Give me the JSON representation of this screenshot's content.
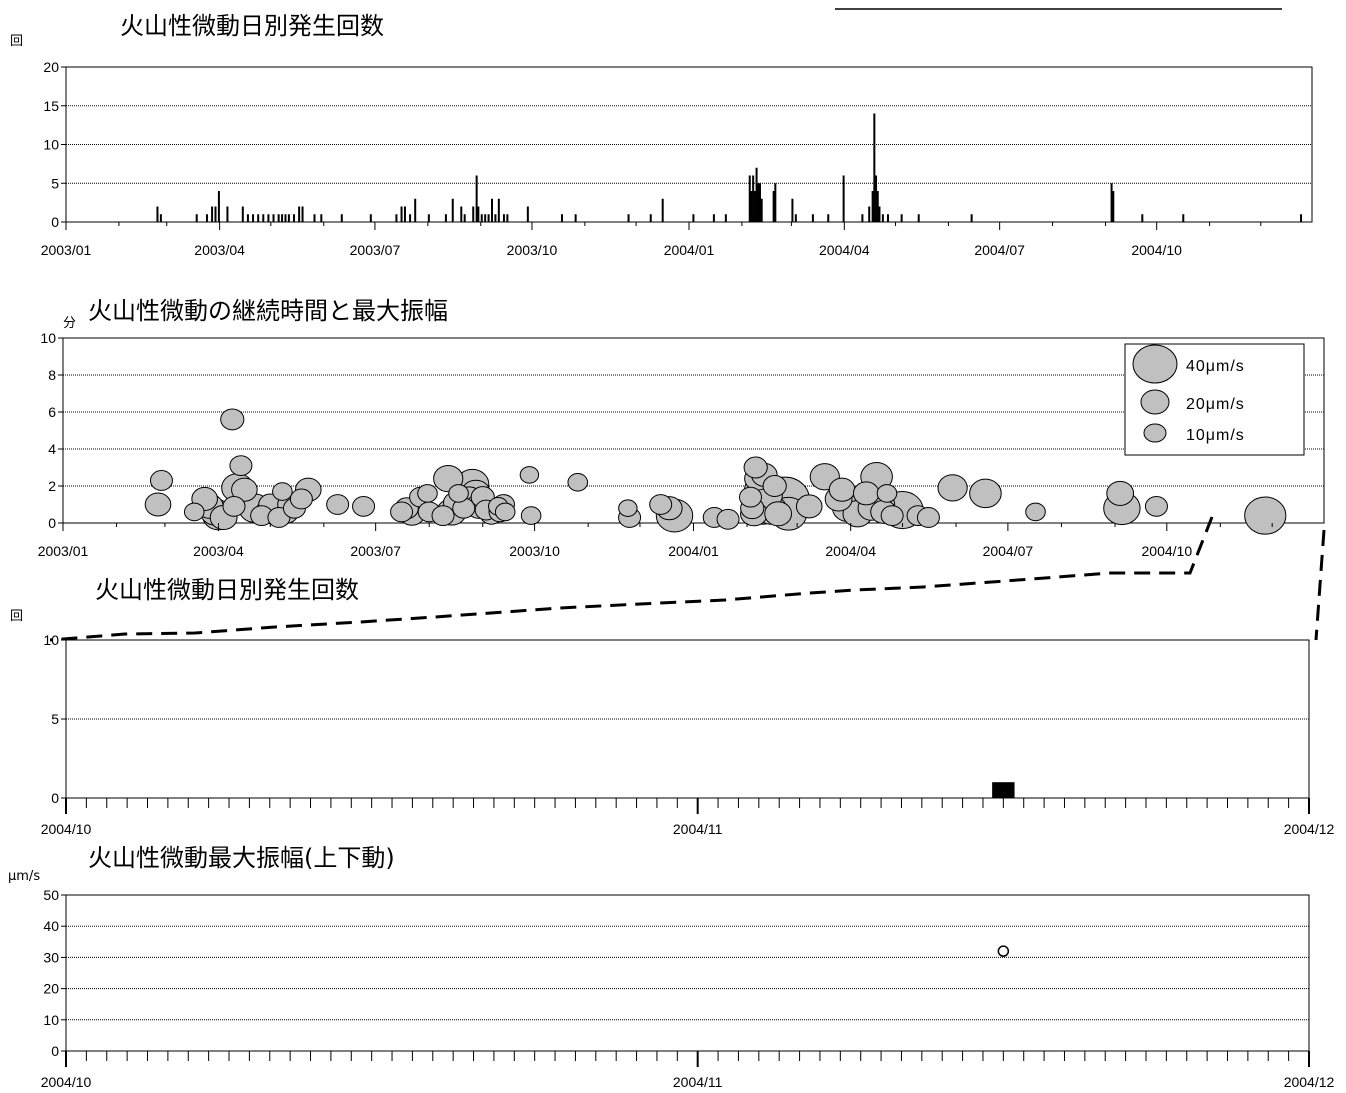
{
  "header_text": "",
  "chart_data": [
    {
      "type": "bar",
      "title": "火山性微動日別発生回数",
      "ylabel": "回",
      "ylim": [
        0,
        20
      ],
      "yticks": [
        0,
        5,
        10,
        15,
        20
      ],
      "xlim": [
        "2003-01-01",
        "2004-12-31"
      ],
      "xtick_labels": [
        "2003/01",
        "2003/04",
        "2003/07",
        "2003/10",
        "2004/01",
        "2004/04",
        "2004/07",
        "2004/10"
      ],
      "grid": true,
      "points": [
        [
          "2003-02-23",
          2
        ],
        [
          "2003-02-25",
          1
        ],
        [
          "2003-03-18",
          1
        ],
        [
          "2003-03-24",
          1
        ],
        [
          "2003-03-27",
          2
        ],
        [
          "2003-03-29",
          2
        ],
        [
          "2003-03-31",
          4
        ],
        [
          "2003-04-05",
          2
        ],
        [
          "2003-04-14",
          2
        ],
        [
          "2003-04-17",
          1
        ],
        [
          "2003-04-20",
          1
        ],
        [
          "2003-04-23",
          1
        ],
        [
          "2003-04-26",
          1
        ],
        [
          "2003-04-29",
          1
        ],
        [
          "2003-05-02",
          1
        ],
        [
          "2003-05-05",
          1
        ],
        [
          "2003-05-07",
          1
        ],
        [
          "2003-05-09",
          1
        ],
        [
          "2003-05-11",
          1
        ],
        [
          "2003-05-14",
          1
        ],
        [
          "2003-05-17",
          2
        ],
        [
          "2003-05-19",
          2
        ],
        [
          "2003-05-26",
          1
        ],
        [
          "2003-05-30",
          1
        ],
        [
          "2003-06-11",
          1
        ],
        [
          "2003-06-28",
          1
        ],
        [
          "2003-07-13",
          1
        ],
        [
          "2003-07-16",
          2
        ],
        [
          "2003-07-18",
          2
        ],
        [
          "2003-07-21",
          1
        ],
        [
          "2003-07-24",
          3
        ],
        [
          "2003-08-01",
          1
        ],
        [
          "2003-08-11",
          1
        ],
        [
          "2003-08-15",
          3
        ],
        [
          "2003-08-20",
          2
        ],
        [
          "2003-08-22",
          1
        ],
        [
          "2003-08-27",
          2
        ],
        [
          "2003-08-29",
          6
        ],
        [
          "2003-08-30",
          2
        ],
        [
          "2003-09-01",
          1
        ],
        [
          "2003-09-03",
          1
        ],
        [
          "2003-09-05",
          1
        ],
        [
          "2003-09-07",
          3
        ],
        [
          "2003-09-09",
          1
        ],
        [
          "2003-09-11",
          3
        ],
        [
          "2003-09-14",
          1
        ],
        [
          "2003-09-16",
          1
        ],
        [
          "2003-09-28",
          2
        ],
        [
          "2003-10-18",
          1
        ],
        [
          "2003-10-26",
          1
        ],
        [
          "2003-11-26",
          1
        ],
        [
          "2003-12-09",
          1
        ],
        [
          "2003-12-16",
          3
        ],
        [
          "2004-01-03",
          1
        ],
        [
          "2004-01-15",
          1
        ],
        [
          "2004-01-22",
          1
        ],
        [
          "2004-02-05",
          6
        ],
        [
          "2004-02-06",
          4
        ],
        [
          "2004-02-07",
          6
        ],
        [
          "2004-02-08",
          4
        ],
        [
          "2004-02-09",
          7
        ],
        [
          "2004-02-10",
          5
        ],
        [
          "2004-02-11",
          5
        ],
        [
          "2004-02-12",
          3
        ],
        [
          "2004-02-19",
          4
        ],
        [
          "2004-02-20",
          5
        ],
        [
          "2004-03-01",
          3
        ],
        [
          "2004-03-03",
          1
        ],
        [
          "2004-03-13",
          1
        ],
        [
          "2004-03-22",
          1
        ],
        [
          "2004-03-31",
          6
        ],
        [
          "2004-04-11",
          1
        ],
        [
          "2004-04-15",
          2
        ],
        [
          "2004-04-17",
          4
        ],
        [
          "2004-04-18",
          14
        ],
        [
          "2004-04-19",
          6
        ],
        [
          "2004-04-20",
          4
        ],
        [
          "2004-04-21",
          2
        ],
        [
          "2004-04-23",
          1
        ],
        [
          "2004-04-26",
          1
        ],
        [
          "2004-05-04",
          1
        ],
        [
          "2004-05-14",
          1
        ],
        [
          "2004-06-14",
          1
        ],
        [
          "2004-09-04",
          5
        ],
        [
          "2004-09-05",
          4
        ],
        [
          "2004-09-22",
          1
        ],
        [
          "2004-10-16",
          1
        ],
        [
          "2004-12-24",
          1
        ]
      ]
    },
    {
      "type": "scatter",
      "title": "火山性微動の継続時間と最大振幅",
      "ylabel": "分",
      "ylim": [
        0,
        10
      ],
      "yticks": [
        0,
        2,
        4,
        6,
        8,
        10
      ],
      "xlim": [
        "2003-01-01",
        "2004-12-31"
      ],
      "xtick_labels": [
        "2003/01",
        "2003/04",
        "2003/07",
        "2003/10",
        "2004/01",
        "2004/04",
        "2004/07",
        "2004/10"
      ],
      "size_legend": [
        {
          "label": "40μm/s",
          "amp": 40
        },
        {
          "label": "20μm/s",
          "amp": 20
        },
        {
          "label": "10μm/s",
          "amp": 10
        }
      ],
      "legend_position": "top-right",
      "grid": true,
      "note": "x = date, y = duration (minutes), amp = maximum amplitude (μm/s)",
      "points": [
        [
          "2003-02-27",
          2.3,
          10
        ],
        [
          "2003-02-25",
          1.0,
          13
        ],
        [
          "2003-03-18",
          0.6,
          8
        ],
        [
          "2003-03-24",
          1.3,
          13
        ],
        [
          "2003-03-27",
          0.9,
          14
        ],
        [
          "2003-03-30",
          0.6,
          16
        ],
        [
          "2003-04-01",
          0.4,
          18
        ],
        [
          "2003-04-04",
          0.3,
          14
        ],
        [
          "2003-04-09",
          5.6,
          11
        ],
        [
          "2003-04-10",
          0.9,
          10
        ],
        [
          "2003-04-12",
          1.9,
          18
        ],
        [
          "2003-04-14",
          3.1,
          10
        ],
        [
          "2003-04-16",
          1.8,
          13
        ],
        [
          "2003-04-22",
          0.8,
          18
        ],
        [
          "2003-04-26",
          0.4,
          10
        ],
        [
          "2003-04-30",
          0.6,
          13
        ],
        [
          "2003-05-01",
          1.0,
          11
        ],
        [
          "2003-05-03",
          0.8,
          16
        ],
        [
          "2003-05-06",
          0.3,
          10
        ],
        [
          "2003-05-08",
          1.7,
          8
        ],
        [
          "2003-05-10",
          0.6,
          13
        ],
        [
          "2003-05-12",
          1.0,
          11
        ],
        [
          "2003-05-15",
          0.8,
          10
        ],
        [
          "2003-05-19",
          1.3,
          10
        ],
        [
          "2003-05-23",
          1.8,
          13
        ],
        [
          "2003-06-09",
          1.0,
          10
        ],
        [
          "2003-06-24",
          0.9,
          10
        ],
        [
          "2003-07-16",
          0.6,
          10
        ],
        [
          "2003-07-19",
          0.8,
          11
        ],
        [
          "2003-07-22",
          0.5,
          13
        ],
        [
          "2003-07-27",
          1.4,
          10
        ],
        [
          "2003-07-31",
          1.6,
          8
        ],
        [
          "2003-08-01",
          0.6,
          10
        ],
        [
          "2003-08-09",
          0.4,
          10
        ],
        [
          "2003-08-12",
          2.4,
          16
        ],
        [
          "2003-08-14",
          0.6,
          16
        ],
        [
          "2003-08-16",
          1.1,
          11
        ],
        [
          "2003-08-18",
          1.6,
          8
        ],
        [
          "2003-08-21",
          0.8,
          10
        ],
        [
          "2003-08-24",
          1.3,
          14
        ],
        [
          "2003-08-26",
          2.1,
          19
        ],
        [
          "2003-08-28",
          1.6,
          16
        ],
        [
          "2003-08-30",
          0.9,
          14
        ],
        [
          "2003-09-01",
          1.4,
          11
        ],
        [
          "2003-09-03",
          0.7,
          10
        ],
        [
          "2003-09-06",
          0.5,
          11
        ],
        [
          "2003-09-10",
          0.9,
          8
        ],
        [
          "2003-09-11",
          0.6,
          10
        ],
        [
          "2003-09-13",
          1.0,
          10
        ],
        [
          "2003-09-14",
          0.6,
          8
        ],
        [
          "2003-09-28",
          2.6,
          7
        ],
        [
          "2003-09-29",
          0.4,
          8
        ],
        [
          "2003-10-26",
          2.2,
          8
        ],
        [
          "2003-11-24",
          0.8,
          7
        ],
        [
          "2003-11-25",
          0.3,
          10
        ],
        [
          "2003-12-13",
          1.0,
          10
        ],
        [
          "2003-12-18",
          0.8,
          13
        ],
        [
          "2003-12-21",
          0.4,
          22
        ],
        [
          "2004-01-13",
          0.3,
          10
        ],
        [
          "2004-01-21",
          0.2,
          10
        ],
        [
          "2004-02-03",
          1.4,
          10
        ],
        [
          "2004-02-04",
          0.8,
          11
        ],
        [
          "2004-02-05",
          0.5,
          14
        ],
        [
          "2004-02-06",
          3.0,
          11
        ],
        [
          "2004-02-07",
          2.4,
          13
        ],
        [
          "2004-02-08",
          1.8,
          16
        ],
        [
          "2004-02-09",
          1.2,
          16
        ],
        [
          "2004-02-10",
          0.7,
          18
        ],
        [
          "2004-02-11",
          2.6,
          13
        ],
        [
          "2004-02-13",
          1.5,
          16
        ],
        [
          "2004-02-15",
          0.7,
          18
        ],
        [
          "2004-02-17",
          2.0,
          11
        ],
        [
          "2004-02-19",
          0.5,
          14
        ],
        [
          "2004-02-23",
          1.3,
          32
        ],
        [
          "2004-02-25",
          0.5,
          22
        ],
        [
          "2004-03-08",
          0.9,
          13
        ],
        [
          "2004-03-17",
          2.5,
          16
        ],
        [
          "2004-03-25",
          1.3,
          14
        ],
        [
          "2004-03-27",
          1.8,
          13
        ],
        [
          "2004-03-30",
          0.8,
          16
        ],
        [
          "2004-04-03",
          1.0,
          22
        ],
        [
          "2004-04-05",
          0.5,
          16
        ],
        [
          "2004-04-10",
          1.6,
          13
        ],
        [
          "2004-04-13",
          0.8,
          14
        ],
        [
          "2004-04-16",
          2.5,
          18
        ],
        [
          "2004-04-18",
          1.0,
          16
        ],
        [
          "2004-04-20",
          0.6,
          13
        ],
        [
          "2004-04-22",
          1.6,
          8
        ],
        [
          "2004-04-25",
          0.4,
          10
        ],
        [
          "2004-05-01",
          0.7,
          26
        ],
        [
          "2004-05-10",
          0.4,
          10
        ],
        [
          "2004-05-16",
          0.3,
          10
        ],
        [
          "2004-05-30",
          1.9,
          16
        ],
        [
          "2004-06-18",
          1.6,
          18
        ],
        [
          "2004-07-17",
          0.6,
          8
        ],
        [
          "2004-09-04",
          1.6,
          14
        ],
        [
          "2004-09-05",
          0.8,
          22
        ],
        [
          "2004-09-25",
          0.9,
          10
        ],
        [
          "2004-11-27",
          0.4,
          26
        ]
      ]
    },
    {
      "type": "bar",
      "title": "火山性微動日別発生回数",
      "ylabel": "回",
      "ylim": [
        0,
        10
      ],
      "yticks": [
        0,
        5,
        10
      ],
      "xlim": [
        "2004-10-01",
        "2004-12-01"
      ],
      "xtick_labels": [
        "2004/10",
        "2004/11",
        "2004/12"
      ],
      "grid": true,
      "points": [
        [
          "2004-11-16",
          1
        ]
      ]
    },
    {
      "type": "scatter",
      "title": "火山性微動最大振幅(上下動)",
      "ylabel": "μm/s",
      "ylim": [
        0,
        50
      ],
      "yticks": [
        0,
        10,
        20,
        30,
        40,
        50
      ],
      "xlim": [
        "2004-10-01",
        "2004-12-01"
      ],
      "xtick_labels": [
        "2004/10",
        "2004/11",
        "2004/12"
      ],
      "grid": true,
      "points": [
        [
          "2004-11-16",
          32
        ]
      ]
    }
  ]
}
